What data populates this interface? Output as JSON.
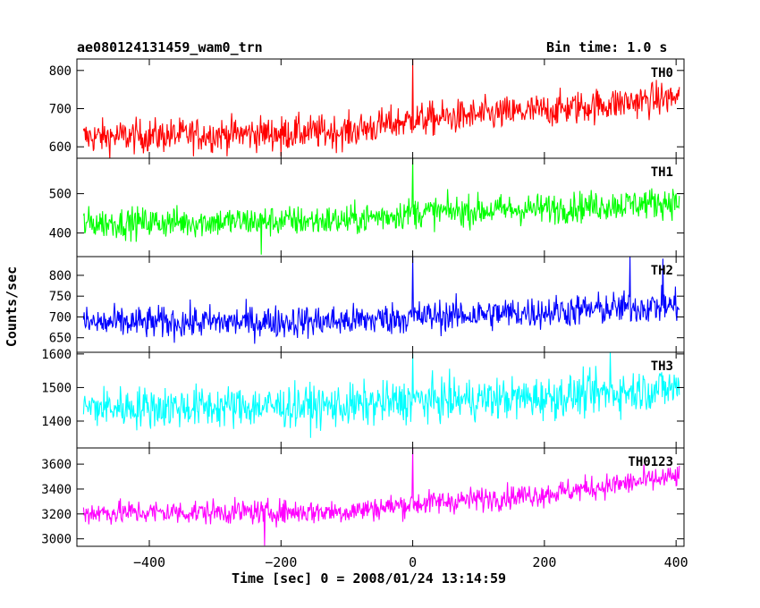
{
  "chart_data": {
    "type": "line",
    "title": "ae080124131459_wam0_trn",
    "bin_time": "Bin time: 1.0 s",
    "xlabel": "Time [sec] 0 = 2008/01/24 13:14:59",
    "ylabel": "Counts/sec",
    "xlim": [
      -510,
      412
    ],
    "x_ticks": [
      -400,
      -200,
      0,
      200,
      400
    ],
    "x_range_data": [
      -500,
      405
    ],
    "panels": [
      {
        "name": "TH0",
        "color": "#ff0000",
        "ylim": [
          570,
          830
        ],
        "yticks": [
          600,
          700,
          800
        ],
        "trend": [
          [
            -500,
            625
          ],
          [
            -100,
            640
          ],
          [
            0,
            670
          ],
          [
            200,
            695
          ],
          [
            405,
            730
          ]
        ],
        "noise": 32,
        "spikes": [
          [
            0,
            830
          ],
          [
            -200,
            575
          ]
        ]
      },
      {
        "name": "TH1",
        "color": "#00ff00",
        "ylim": [
          340,
          590
        ],
        "yticks": [
          400,
          500
        ],
        "trend": [
          [
            -500,
            425
          ],
          [
            -100,
            432
          ],
          [
            0,
            452
          ],
          [
            200,
            462
          ],
          [
            405,
            480
          ]
        ],
        "noise": 28,
        "spikes": [
          [
            0,
            590
          ],
          [
            -230,
            345
          ]
        ]
      },
      {
        "name": "TH2",
        "color": "#0000ff",
        "ylim": [
          615,
          845
        ],
        "yticks": [
          650,
          700,
          750,
          800
        ],
        "trend": [
          [
            -500,
            685
          ],
          [
            -100,
            690
          ],
          [
            0,
            700
          ],
          [
            200,
            712
          ],
          [
            405,
            728
          ]
        ],
        "noise": 28,
        "spikes": [
          [
            0,
            845
          ],
          [
            330,
            845
          ],
          [
            380,
            840
          ]
        ]
      },
      {
        "name": "TH3",
        "color": "#00ffff",
        "ylim": [
          1320,
          1605
        ],
        "yticks": [
          1400,
          1500,
          1600
        ],
        "trend": [
          [
            -500,
            1440
          ],
          [
            -100,
            1445
          ],
          [
            0,
            1460
          ],
          [
            200,
            1470
          ],
          [
            405,
            1500
          ]
        ],
        "noise": 45,
        "spikes": [
          [
            0,
            1600
          ],
          [
            300,
            1605
          ]
        ]
      },
      {
        "name": "TH0123",
        "color": "#ff00ff",
        "ylim": [
          2940,
          3730
        ],
        "yticks": [
          3000,
          3200,
          3400,
          3600
        ],
        "trend": [
          [
            -500,
            3210
          ],
          [
            -100,
            3220
          ],
          [
            0,
            3280
          ],
          [
            200,
            3360
          ],
          [
            405,
            3500
          ]
        ],
        "noise": 70,
        "spikes": [
          [
            0,
            3730
          ],
          [
            -225,
            2945
          ]
        ]
      }
    ]
  }
}
